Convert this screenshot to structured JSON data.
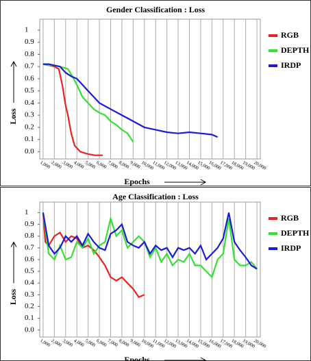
{
  "chart_data": [
    {
      "type": "line",
      "title": "Gender Classification : Loss",
      "xlabel": "Epochs",
      "ylabel": "Loss",
      "xlim": [
        700,
        20300
      ],
      "ylim": [
        -0.06,
        1.09
      ],
      "grid": true,
      "legend": "upper right",
      "yticks": [
        {
          "value": 0,
          "label": "0.0"
        },
        0.1,
        0.2,
        0.3,
        0.4,
        0.5,
        0.6,
        0.7,
        0.8,
        0.9,
        1
      ],
      "xticks": [
        {
          "value": 1000,
          "label": "1,000"
        },
        {
          "value": 2000,
          "label": "2,000"
        },
        {
          "value": 3000,
          "label": "3,000"
        },
        {
          "value": 4000,
          "label": "4,000"
        },
        {
          "value": 5000,
          "label": "5,000"
        },
        {
          "value": 6000,
          "label": "6,000"
        },
        {
          "value": 7000,
          "label": "7,000"
        },
        {
          "value": 8000,
          "label": "8,000"
        },
        {
          "value": 9000,
          "label": "9,000"
        },
        {
          "value": 10000,
          "label": "10,000"
        },
        {
          "value": 11000,
          "label": "11,000"
        },
        {
          "value": 12000,
          "label": "12,000"
        },
        {
          "value": 13000,
          "label": "13,000"
        },
        {
          "value": 14000,
          "label": "14,000"
        },
        {
          "value": 15000,
          "label": "15,000"
        },
        {
          "value": 16000,
          "label": "16,000"
        },
        {
          "value": 17000,
          "label": "17,000"
        },
        {
          "value": 18000,
          "label": "18,000"
        },
        {
          "value": 19000,
          "label": "19,000"
        },
        {
          "value": 20000,
          "label": "20,000"
        }
      ],
      "series": [
        {
          "name": "RGB",
          "color": "#e8221f",
          "x": [
            1000,
            1500,
            2000,
            2400,
            2700,
            3000,
            3200,
            3500,
            3800,
            4300,
            5000,
            5600,
            6300
          ],
          "values": [
            0.72,
            0.71,
            0.7,
            0.68,
            0.55,
            0.38,
            0.3,
            0.15,
            0.05,
            0.0,
            -0.02,
            -0.03,
            -0.03
          ]
        },
        {
          "name": "DEPTH",
          "color": "#35e035",
          "x": [
            1000,
            1500,
            2000,
            2500,
            3200,
            3600,
            4000,
            4500,
            5000,
            5500,
            6000,
            6500,
            7000,
            7500,
            8000,
            8500,
            9000
          ],
          "values": [
            0.72,
            0.71,
            0.71,
            0.7,
            0.68,
            0.62,
            0.55,
            0.45,
            0.4,
            0.35,
            0.32,
            0.3,
            0.25,
            0.22,
            0.18,
            0.15,
            0.08
          ]
        },
        {
          "name": "IRDP",
          "color": "#1a1ad8",
          "x": [
            1000,
            1500,
            2000,
            2500,
            3000,
            3500,
            4000,
            4500,
            5000,
            5500,
            6000,
            7000,
            8000,
            9000,
            10000,
            11000,
            12000,
            13000,
            14000,
            15000,
            16000,
            16500
          ],
          "values": [
            0.72,
            0.72,
            0.71,
            0.7,
            0.65,
            0.62,
            0.6,
            0.55,
            0.5,
            0.45,
            0.4,
            0.35,
            0.3,
            0.25,
            0.2,
            0.18,
            0.16,
            0.15,
            0.16,
            0.15,
            0.14,
            0.12
          ]
        }
      ]
    },
    {
      "type": "line",
      "title": "Age Classification : Loss",
      "xlabel": "Epochs",
      "ylabel": "Loss",
      "xlim": [
        700,
        20300
      ],
      "ylim": [
        -0.06,
        1.09
      ],
      "grid": true,
      "legend": "upper right",
      "yticks": [
        {
          "value": 0,
          "label": "0.0"
        },
        0.1,
        0.2,
        0.3,
        0.4,
        0.5,
        0.6,
        0.7,
        0.8,
        0.9,
        1
      ],
      "xticks": [
        {
          "value": 1000,
          "label": "1,000"
        },
        {
          "value": 2000,
          "label": "2,000"
        },
        {
          "value": 3000,
          "label": "3,000"
        },
        {
          "value": 4000,
          "label": "4,000"
        },
        {
          "value": 5000,
          "label": "5,000"
        },
        {
          "value": 6000,
          "label": "6,000"
        },
        {
          "value": 7000,
          "label": "7,000"
        },
        {
          "value": 8000,
          "label": "8,000"
        },
        {
          "value": 9000,
          "label": "9,000"
        },
        {
          "value": 10000,
          "label": "10,000"
        },
        {
          "value": 11000,
          "label": "11,000"
        },
        {
          "value": 12000,
          "label": "12,000"
        },
        {
          "value": 13000,
          "label": "13,000"
        },
        {
          "value": 14000,
          "label": "14,000"
        },
        {
          "value": 15000,
          "label": "15,000"
        },
        {
          "value": 16000,
          "label": "16,000"
        },
        {
          "value": 17000,
          "label": "17,000"
        },
        {
          "value": 18000,
          "label": "18,000"
        },
        {
          "value": 19000,
          "label": "19,000"
        },
        {
          "value": 20000,
          "label": "20,000"
        }
      ],
      "series": [
        {
          "name": "RGB",
          "color": "#e8221f",
          "x": [
            1000,
            1200,
            1500,
            2000,
            2500,
            3000,
            3500,
            4000,
            4500,
            5000,
            5500,
            6000,
            6500,
            7000,
            7500,
            8000,
            8500,
            9000,
            9500,
            10000
          ],
          "values": [
            1.0,
            0.75,
            0.72,
            0.8,
            0.83,
            0.75,
            0.8,
            0.78,
            0.7,
            0.72,
            0.68,
            0.62,
            0.55,
            0.45,
            0.42,
            0.45,
            0.4,
            0.35,
            0.28,
            0.3
          ]
        },
        {
          "name": "DEPTH",
          "color": "#35e035",
          "x": [
            1000,
            1500,
            2000,
            2500,
            3000,
            3500,
            4000,
            4500,
            5000,
            5500,
            6000,
            6500,
            7000,
            7500,
            8000,
            8500,
            9000,
            9500,
            10000,
            10500,
            11000,
            11500,
            12000,
            12500,
            13000,
            13500,
            14000,
            14500,
            15000,
            15500,
            16000,
            16500,
            17000,
            17500,
            18000,
            18500,
            19000,
            19500,
            20000
          ],
          "values": [
            1.0,
            0.65,
            0.6,
            0.72,
            0.6,
            0.62,
            0.75,
            0.7,
            0.78,
            0.65,
            0.72,
            0.75,
            0.95,
            0.8,
            0.85,
            0.7,
            0.75,
            0.8,
            0.75,
            0.62,
            0.7,
            0.58,
            0.65,
            0.55,
            0.6,
            0.58,
            0.65,
            0.55,
            0.55,
            0.5,
            0.45,
            0.6,
            0.65,
            0.95,
            0.6,
            0.55,
            0.55,
            0.58,
            0.52
          ]
        },
        {
          "name": "IRDP",
          "color": "#1a1ad8",
          "x": [
            1000,
            1500,
            2000,
            2500,
            3000,
            3500,
            4000,
            4500,
            5000,
            5500,
            6000,
            6500,
            7000,
            7500,
            8000,
            8500,
            9000,
            9500,
            10000,
            10500,
            11000,
            11500,
            12000,
            12500,
            13000,
            13500,
            14000,
            14500,
            15000,
            15500,
            16000,
            16500,
            17000,
            17500,
            18000,
            18500,
            19000,
            19500,
            20000
          ],
          "values": [
            1.0,
            0.72,
            0.65,
            0.7,
            0.8,
            0.75,
            0.8,
            0.72,
            0.82,
            0.75,
            0.7,
            0.68,
            0.82,
            0.85,
            0.9,
            0.75,
            0.72,
            0.7,
            0.75,
            0.65,
            0.72,
            0.68,
            0.7,
            0.62,
            0.7,
            0.68,
            0.7,
            0.65,
            0.72,
            0.6,
            0.65,
            0.7,
            0.78,
            1.0,
            0.75,
            0.68,
            0.62,
            0.55,
            0.52
          ]
        }
      ]
    }
  ]
}
